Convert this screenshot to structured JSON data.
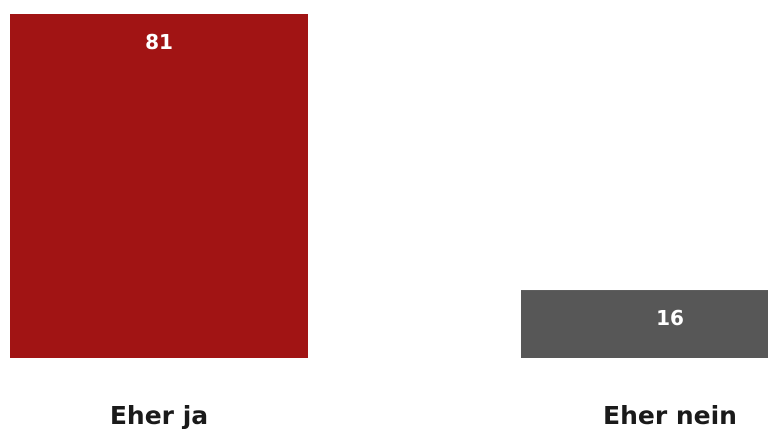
{
  "chart_data": {
    "type": "bar",
    "categories": [
      "Eher ja",
      "Eher nein"
    ],
    "values": [
      81,
      16
    ],
    "colors": [
      "#a11414",
      "#575757"
    ],
    "value_label_color": "#ffffff",
    "title": "",
    "xlabel": "",
    "ylabel": "",
    "ylim": [
      0,
      81
    ],
    "grid": false,
    "legend": "none"
  }
}
